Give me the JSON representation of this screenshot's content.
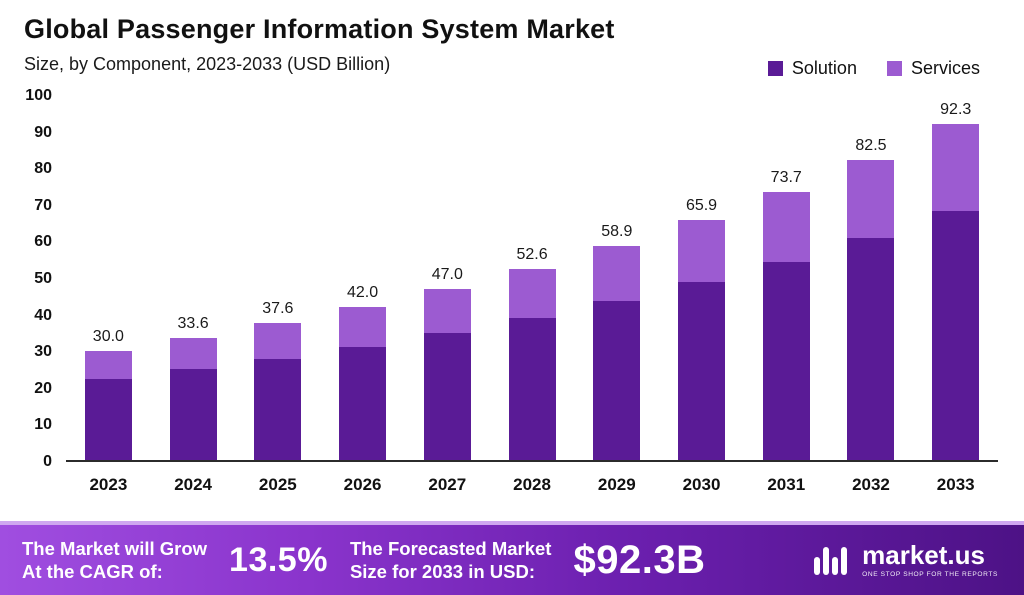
{
  "header": {
    "title": "Global Passenger Information System Market",
    "subtitle": "Size, by Component, 2023-2033 (USD Billion)"
  },
  "chart_data": {
    "type": "bar",
    "stacked": true,
    "title": "Global Passenger Information System Market",
    "subtitle": "Size, by Component, 2023-2033 (USD Billion)",
    "unit": "USD Billion",
    "categories": [
      "2023",
      "2024",
      "2025",
      "2026",
      "2027",
      "2028",
      "2029",
      "2030",
      "2031",
      "2032",
      "2033"
    ],
    "series": [
      {
        "name": "Solution",
        "color": "#5a1b96",
        "values": [
          22.2,
          24.9,
          27.8,
          31.1,
          34.8,
          38.9,
          43.6,
          48.8,
          54.5,
          61.1,
          68.3
        ]
      },
      {
        "name": "Services",
        "color": "#9c5bd1",
        "values": [
          7.8,
          8.7,
          9.8,
          10.9,
          12.2,
          13.7,
          15.3,
          17.1,
          19.2,
          21.4,
          24.0
        ]
      }
    ],
    "totals": [
      30.0,
      33.6,
      37.6,
      42.0,
      47.0,
      52.6,
      58.9,
      65.9,
      73.7,
      82.5,
      92.3
    ],
    "total_labels": [
      "30.0",
      "33.6",
      "37.6",
      "42.0",
      "47.0",
      "52.6",
      "58.9",
      "65.9",
      "73.7",
      "82.5",
      "92.3"
    ],
    "ylim": [
      0,
      100
    ],
    "ytick_step": 10,
    "grid": false,
    "legend_position": "top-right"
  },
  "footer": {
    "cagr_label": "The Market will Grow\nAt the CAGR of:",
    "cagr_value": "13.5%",
    "forecast_label": "The Forecasted Market\nSize for 2033 in USD:",
    "forecast_value": "$92.3B",
    "logo_text": "market.us",
    "logo_tagline": "One Stop Shop For The Reports"
  }
}
